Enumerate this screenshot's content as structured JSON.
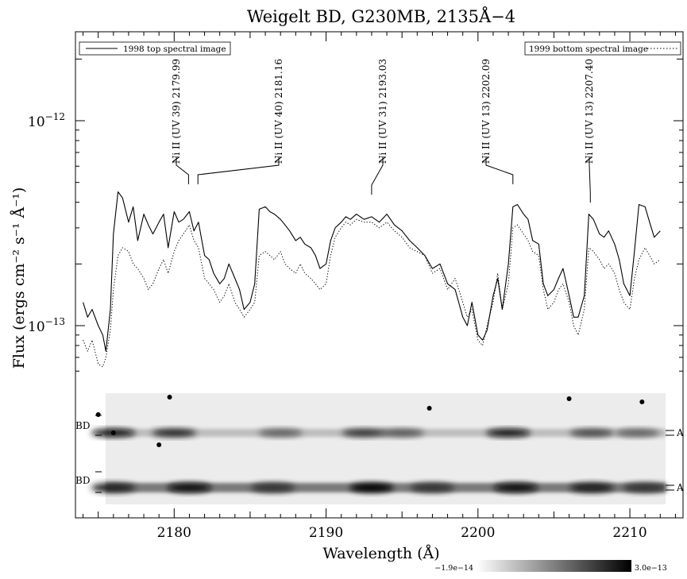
{
  "chart_data": {
    "type": "line",
    "title": "Weigelt BD, G230MB, 2135Å−4",
    "xlabel": "Wavelength (Å)",
    "ylabel": "Flux (ergs cm⁻² s⁻¹ Å⁻¹)",
    "y_scale": "log",
    "xlim": [
      2173.5,
      2213.5
    ],
    "ylim": [
      4.8e-14,
      3e-12
    ],
    "x_ticks": [
      2180,
      2190,
      2200,
      2210
    ],
    "x_tick_labels": [
      "2180",
      "2190",
      "2200",
      "2210"
    ],
    "y_ticks": [
      1e-13,
      1e-12
    ],
    "y_tick_labels": [
      {
        "base": "10",
        "exp": "−13"
      },
      {
        "base": "10",
        "exp": "−12"
      }
    ],
    "legend": [
      {
        "name": "1998 top spectral image",
        "style": "solid",
        "position": "top-left"
      },
      {
        "name": "1999 bottom spectral image",
        "style": "dotted",
        "position": "top-right"
      }
    ],
    "series": [
      {
        "name": "1998 top spectral image",
        "style": "solid",
        "x": [
          2174.0,
          2174.3,
          2174.6,
          2175.0,
          2175.3,
          2175.5,
          2175.8,
          2176.0,
          2176.3,
          2176.6,
          2177.0,
          2177.3,
          2177.6,
          2178.0,
          2178.3,
          2178.6,
          2179.0,
          2179.3,
          2179.6,
          2180.0,
          2180.3,
          2180.6,
          2181.0,
          2181.3,
          2181.6,
          2182.0,
          2182.3,
          2182.6,
          2183.0,
          2183.3,
          2183.6,
          2184.0,
          2184.3,
          2184.6,
          2185.0,
          2185.3,
          2185.6,
          2186.0,
          2186.3,
          2186.6,
          2187.0,
          2187.3,
          2187.6,
          2188.0,
          2188.3,
          2188.6,
          2189.0,
          2189.3,
          2189.6,
          2190.0,
          2190.3,
          2190.6,
          2191.0,
          2191.3,
          2191.6,
          2192.0,
          2192.5,
          2193.0,
          2193.5,
          2194.0,
          2194.5,
          2195.0,
          2195.5,
          2196.0,
          2196.5,
          2197.0,
          2197.5,
          2198.0,
          2198.5,
          2199.0,
          2199.3,
          2199.6,
          2200.0,
          2200.3,
          2200.6,
          2201.0,
          2201.3,
          2201.6,
          2202.0,
          2202.3,
          2202.6,
          2203.0,
          2203.3,
          2203.6,
          2204.0,
          2204.3,
          2204.6,
          2205.0,
          2205.3,
          2205.6,
          2206.0,
          2206.3,
          2206.6,
          2207.0,
          2207.3,
          2207.6,
          2208.0,
          2208.3,
          2208.6,
          2209.0,
          2209.3,
          2209.6,
          2210.0,
          2210.3,
          2210.6,
          2211.0,
          2211.3,
          2211.6,
          2212.0
        ],
        "values": [
          1.3e-13,
          1.1e-13,
          1.2e-13,
          1e-13,
          9e-14,
          7.5e-14,
          1.2e-13,
          2.8e-13,
          4.5e-13,
          4.2e-13,
          3.2e-13,
          3.8e-13,
          2.6e-13,
          3.5e-13,
          3.1e-13,
          2.8e-13,
          3.2e-13,
          3.5e-13,
          2.4e-13,
          3.6e-13,
          3.2e-13,
          3.3e-13,
          3.6e-13,
          2.9e-13,
          3.2e-13,
          2.2e-13,
          2.1e-13,
          1.8e-13,
          1.6e-13,
          1.7e-13,
          2e-13,
          1.7e-13,
          1.5e-13,
          1.2e-13,
          1.3e-13,
          1.6e-13,
          3.7e-13,
          3.8e-13,
          3.6e-13,
          3.5e-13,
          3.3e-13,
          3.1e-13,
          2.9e-13,
          2.6e-13,
          2.7e-13,
          2.5e-13,
          2.4e-13,
          2.2e-13,
          1.9e-13,
          2e-13,
          2.6e-13,
          3e-13,
          3.2e-13,
          3.4e-13,
          3.3e-13,
          3.5e-13,
          3.3e-13,
          3.4e-13,
          3.2e-13,
          3.5e-13,
          3.1e-13,
          2.9e-13,
          2.6e-13,
          2.4e-13,
          2.2e-13,
          1.9e-13,
          2e-13,
          1.6e-13,
          1.5e-13,
          1.1e-13,
          1e-13,
          1.3e-13,
          9e-14,
          8.5e-14,
          9.5e-14,
          1.4e-13,
          1.7e-13,
          1.2e-13,
          2e-13,
          3.8e-13,
          3.9e-13,
          3.5e-13,
          3.3e-13,
          2.6e-13,
          2.5e-13,
          1.6e-13,
          1.4e-13,
          1.5e-13,
          1.7e-13,
          1.9e-13,
          1.4e-13,
          1.1e-13,
          1.1e-13,
          1.4e-13,
          3.5e-13,
          3.3e-13,
          2.8e-13,
          2.7e-13,
          2.9e-13,
          2.5e-13,
          2.1e-13,
          1.6e-13,
          1.4e-13,
          2.3e-13,
          3.9e-13,
          3.8e-13,
          3.2e-13,
          2.7e-13,
          2.9e-13
        ]
      },
      {
        "name": "1999 bottom spectral image",
        "style": "dotted",
        "x": [
          2174.0,
          2174.3,
          2174.6,
          2175.0,
          2175.3,
          2175.5,
          2175.8,
          2176.0,
          2176.3,
          2176.6,
          2177.0,
          2177.3,
          2177.6,
          2178.0,
          2178.3,
          2178.6,
          2179.0,
          2179.3,
          2179.6,
          2180.0,
          2180.3,
          2180.6,
          2181.0,
          2181.3,
          2181.6,
          2182.0,
          2182.3,
          2182.6,
          2183.0,
          2183.3,
          2183.6,
          2184.0,
          2184.3,
          2184.6,
          2185.0,
          2185.3,
          2185.6,
          2186.0,
          2186.3,
          2186.6,
          2187.0,
          2187.3,
          2187.6,
          2188.0,
          2188.3,
          2188.6,
          2189.0,
          2189.3,
          2189.6,
          2190.0,
          2190.3,
          2190.6,
          2191.0,
          2191.3,
          2191.6,
          2192.0,
          2192.5,
          2193.0,
          2193.5,
          2194.0,
          2194.5,
          2195.0,
          2195.5,
          2196.0,
          2196.5,
          2197.0,
          2197.5,
          2198.0,
          2198.5,
          2199.0,
          2199.3,
          2199.6,
          2200.0,
          2200.3,
          2200.6,
          2201.0,
          2201.3,
          2201.6,
          2202.0,
          2202.3,
          2202.6,
          2203.0,
          2203.3,
          2203.6,
          2204.0,
          2204.3,
          2204.6,
          2205.0,
          2205.3,
          2205.6,
          2206.0,
          2206.3,
          2206.6,
          2207.0,
          2207.3,
          2207.6,
          2208.0,
          2208.3,
          2208.6,
          2209.0,
          2209.3,
          2209.6,
          2210.0,
          2210.3,
          2210.6,
          2211.0,
          2211.3,
          2211.6,
          2212.0
        ],
        "values": [
          8.5e-14,
          7.5e-14,
          8.5e-14,
          6.5e-14,
          6.3e-14,
          7e-14,
          9.5e-14,
          1.5e-13,
          2.2e-13,
          2.4e-13,
          2.3e-13,
          2e-13,
          1.9e-13,
          1.7e-13,
          1.5e-13,
          1.6e-13,
          1.9e-13,
          2.1e-13,
          1.8e-13,
          2.3e-13,
          2.6e-13,
          2.8e-13,
          3.1e-13,
          2.6e-13,
          2.4e-13,
          1.7e-13,
          1.6e-13,
          1.5e-13,
          1.3e-13,
          1.4e-13,
          1.6e-13,
          1.3e-13,
          1.2e-13,
          1.1e-13,
          1.2e-13,
          1.3e-13,
          2.2e-13,
          2.3e-13,
          2.2e-13,
          2.1e-13,
          2.3e-13,
          2e-13,
          1.9e-13,
          1.8e-13,
          2e-13,
          1.8e-13,
          1.7e-13,
          1.6e-13,
          1.5e-13,
          1.6e-13,
          2.2e-13,
          2.7e-13,
          3e-13,
          3.2e-13,
          3.1e-13,
          3.3e-13,
          3.2e-13,
          3.2e-13,
          3e-13,
          3.2e-13,
          2.9e-13,
          2.7e-13,
          2.4e-13,
          2.3e-13,
          2.2e-13,
          1.8e-13,
          1.9e-13,
          1.5e-13,
          1.7e-13,
          1.3e-13,
          1.1e-13,
          1.2e-13,
          8.5e-14,
          8e-14,
          1e-13,
          1.3e-13,
          1.8e-13,
          1.2e-13,
          1.6e-13,
          3e-13,
          3.1e-13,
          2.8e-13,
          2.6e-13,
          2.3e-13,
          2.2e-13,
          1.5e-13,
          1.2e-13,
          1.3e-13,
          1.5e-13,
          1.6e-13,
          1.3e-13,
          1e-13,
          9e-14,
          1.2e-13,
          2.4e-13,
          2.3e-13,
          2.1e-13,
          1.9e-13,
          2e-13,
          1.8e-13,
          1.5e-13,
          1.3e-13,
          1.2e-13,
          1.7e-13,
          2.1e-13,
          2.4e-13,
          2.2e-13,
          2e-13,
          2.1e-13
        ]
      }
    ],
    "line_ids": [
      {
        "text": "Ni II (UV 39) 2179.99",
        "wavelength": 2181.0
      },
      {
        "text": "Ni II (UV 40) 2181.16",
        "wavelength": 2181.2
      },
      {
        "text": "Ni II (UV 31) 2193.03",
        "wavelength": 2193.0
      },
      {
        "text": "Ni II (UV 13) 2202.09",
        "wavelength": 2202.3
      },
      {
        "text": "Ni II (UV 13) 2207.40",
        "wavelength": 2207.4
      }
    ],
    "spectral_image": {
      "left_labels": [
        "BD",
        "BD"
      ],
      "right_labels": [
        "A",
        "A"
      ],
      "colorbar": {
        "min_label": "−1.9e−14",
        "max_label": "3.0e−13"
      },
      "top_band_blobs": [
        {
          "x": 2176.0,
          "strength": 0.9
        },
        {
          "x": 2180.0,
          "strength": 0.8
        },
        {
          "x": 2187.0,
          "strength": 0.45
        },
        {
          "x": 2192.5,
          "strength": 0.7
        },
        {
          "x": 2195.0,
          "strength": 0.5
        },
        {
          "x": 2202.0,
          "strength": 0.9
        },
        {
          "x": 2207.5,
          "strength": 0.6
        },
        {
          "x": 2210.5,
          "strength": 0.45
        }
      ],
      "bottom_band_blobs": [
        {
          "x": 2176.0,
          "strength": 0.8
        },
        {
          "x": 2181.0,
          "strength": 0.95
        },
        {
          "x": 2186.5,
          "strength": 0.7
        },
        {
          "x": 2193.0,
          "strength": 1.0
        },
        {
          "x": 2197.0,
          "strength": 0.7
        },
        {
          "x": 2202.5,
          "strength": 0.95
        },
        {
          "x": 2207.5,
          "strength": 0.85
        },
        {
          "x": 2211.0,
          "strength": 0.7
        }
      ]
    }
  }
}
